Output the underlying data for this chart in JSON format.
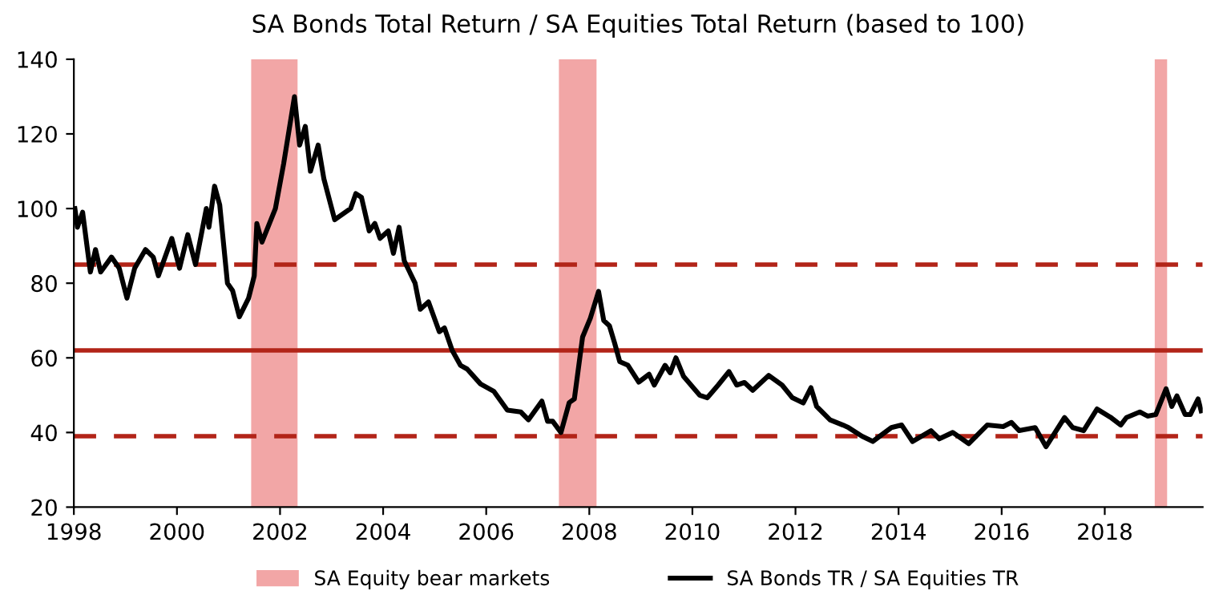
{
  "chart_data": {
    "type": "line",
    "title": "SA Bonds Total Return / SA Equities Total Return (based to 100)",
    "series": [
      {
        "name": "SA Bonds TR / SA Equities TR",
        "color": "#000000",
        "x": [
          1998.02,
          1998.07,
          1998.17,
          1998.32,
          1998.42,
          1998.52,
          1998.73,
          1998.88,
          1999.03,
          1999.18,
          1999.39,
          1999.54,
          1999.64,
          1999.9,
          2000.05,
          2000.21,
          2000.36,
          2000.57,
          2000.62,
          2000.73,
          2000.83,
          2000.98,
          2001.08,
          2001.21,
          2001.39,
          2001.5,
          2001.55,
          2001.65,
          2001.91,
          2002.07,
          2002.28,
          2002.38,
          2002.49,
          2002.59,
          2002.74,
          2002.85,
          2003.06,
          2003.37,
          2003.47,
          2003.58,
          2003.73,
          2003.84,
          2003.94,
          2004.1,
          2004.2,
          2004.31,
          2004.41,
          2004.62,
          2004.72,
          2004.88,
          2005.09,
          2005.19,
          2005.34,
          2005.5,
          2005.63,
          2005.89,
          2006.15,
          2006.41,
          2006.67,
          2006.82,
          2007.08,
          2007.19,
          2007.29,
          2007.45,
          2007.61,
          2007.71,
          2007.87,
          2008.02,
          2008.18,
          2008.28,
          2008.39,
          2008.49,
          2008.59,
          2008.75,
          2008.96,
          2009.16,
          2009.26,
          2009.47,
          2009.57,
          2009.68,
          2009.83,
          2010.14,
          2010.29,
          2010.5,
          2010.71,
          2010.86,
          2011.01,
          2011.17,
          2011.48,
          2011.74,
          2011.94,
          2012.15,
          2012.3,
          2012.41,
          2012.67,
          2012.92,
          2013.03,
          2013.29,
          2013.5,
          2013.86,
          2014.06,
          2014.27,
          2014.63,
          2014.79,
          2015.05,
          2015.36,
          2015.72,
          2016.03,
          2016.19,
          2016.34,
          2016.65,
          2016.86,
          2017.22,
          2017.38,
          2017.59,
          2017.85,
          2018.11,
          2018.31,
          2018.42,
          2018.68,
          2018.83,
          2018.99,
          2019.19,
          2019.3,
          2019.4,
          2019.56,
          2019.66,
          2019.81,
          2019.87
        ],
        "values": [
          100,
          95,
          99,
          83,
          89,
          83,
          87,
          84,
          76,
          84,
          89,
          87,
          82,
          92,
          84,
          93,
          85,
          100,
          95,
          106,
          101,
          80,
          78,
          71,
          76,
          82,
          96,
          91,
          100,
          112,
          130,
          117,
          122,
          110,
          117,
          108,
          97,
          100,
          104,
          103,
          94,
          96,
          92,
          94,
          88,
          95,
          86,
          80,
          73,
          75,
          67,
          68,
          62,
          58,
          57,
          53,
          51,
          46,
          45.5,
          43.4,
          48.4,
          43,
          43,
          40,
          48,
          49,
          65.6,
          70.6,
          77.8,
          70,
          68.6,
          64,
          59,
          58,
          53.5,
          55.6,
          52.7,
          58,
          56,
          60,
          55,
          50,
          49.3,
          52.7,
          56.3,
          52.7,
          53.4,
          51.3,
          55.3,
          52.7,
          49.3,
          47.9,
          52,
          47,
          43.4,
          42,
          41.3,
          39,
          37.6,
          41.3,
          42,
          37.6,
          40.5,
          38.3,
          40,
          37,
          42,
          41.6,
          42.7,
          40.5,
          41.3,
          36.2,
          44,
          41.3,
          40.5,
          46.3,
          44.1,
          42,
          44,
          45.5,
          44.4,
          44.8,
          51.7,
          47,
          49.8,
          44.8,
          44.8,
          49,
          45.8
        ]
      }
    ],
    "xlim": [
      1998,
      2019.9
    ],
    "xticks": [
      1998,
      2000,
      2002,
      2004,
      2006,
      2008,
      2010,
      2012,
      2014,
      2016,
      2018
    ],
    "ylim": [
      20,
      140
    ],
    "yticks": [
      20,
      40,
      60,
      80,
      100,
      120,
      140
    ],
    "ref_lines": [
      {
        "axis": "y",
        "value": 85,
        "color": "#b22418",
        "line_style": "dashed"
      },
      {
        "axis": "y",
        "value": 62,
        "color": "#b22418",
        "line_style": "solid"
      },
      {
        "axis": "y",
        "value": 39,
        "color": "#b22418",
        "line_style": "dashed"
      }
    ],
    "bands": [
      {
        "axis": "x",
        "from": 2001.44,
        "to": 2002.34,
        "label": "SA Equity bear markets",
        "color": "#f2a6a6"
      },
      {
        "axis": "x",
        "from": 2007.41,
        "to": 2008.14,
        "color": "#f2a6a6"
      },
      {
        "axis": "x",
        "from": 2018.97,
        "to": 2019.21,
        "color": "#f2a6a6"
      }
    ],
    "grid": false,
    "legend": "bottom",
    "marker": "none",
    "line_style": "solid"
  }
}
